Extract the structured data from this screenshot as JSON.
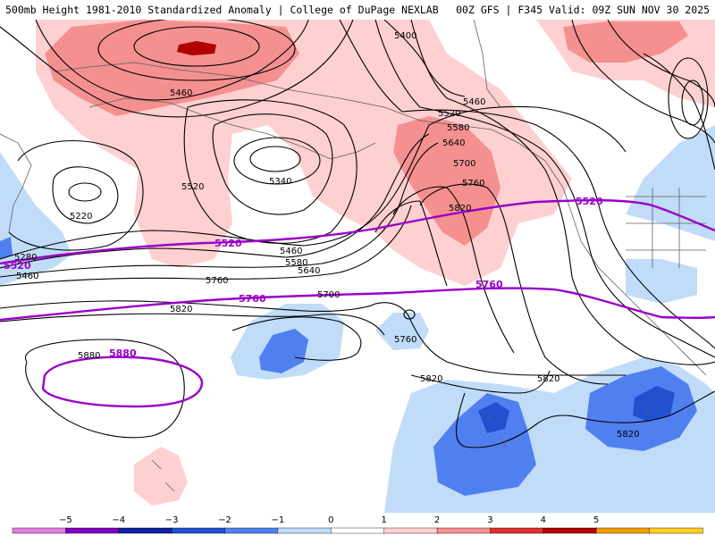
{
  "header": {
    "left_title": "500mb Height 1981-2010 Standardized Anomaly | College of DuPage NEXLAB",
    "right_title": "00Z GFS | F345 Valid: 09Z SUN NOV 30 2025"
  },
  "map": {
    "contour_labels": [
      {
        "id": "c5400",
        "text": "5400"
      },
      {
        "id": "c5460a",
        "text": "5460"
      },
      {
        "id": "c5460b",
        "text": "5460"
      },
      {
        "id": "c5520a",
        "text": "5520"
      },
      {
        "id": "c5580",
        "text": "5580"
      },
      {
        "id": "c5640",
        "text": "5640"
      },
      {
        "id": "c5700",
        "text": "5700"
      },
      {
        "id": "c5760",
        "text": "5760"
      },
      {
        "id": "c5820",
        "text": "5820"
      },
      {
        "id": "c5340",
        "text": "5340"
      },
      {
        "id": "c5520b",
        "text": "5520"
      },
      {
        "id": "c5220",
        "text": "5220"
      },
      {
        "id": "c5280",
        "text": "5280"
      },
      {
        "id": "c5460c",
        "text": "5460"
      },
      {
        "id": "c5460d",
        "text": "5460"
      },
      {
        "id": "c5580b",
        "text": "5580"
      },
      {
        "id": "c5640b",
        "text": "5640"
      },
      {
        "id": "c5700b",
        "text": "5700"
      },
      {
        "id": "c5760b",
        "text": "5760"
      },
      {
        "id": "c5820b",
        "text": "5820"
      },
      {
        "id": "c5880",
        "text": "5880"
      },
      {
        "id": "c5760c",
        "text": "5760"
      },
      {
        "id": "c5820c",
        "text": "5820"
      },
      {
        "id": "c5820d",
        "text": "5820"
      },
      {
        "id": "c5820e",
        "text": "5820"
      }
    ],
    "climo_labels": [
      {
        "id": "p5520a",
        "text": "5520"
      },
      {
        "id": "p5520b",
        "text": "5520"
      },
      {
        "id": "p5520c",
        "text": "5520"
      },
      {
        "id": "p5760a",
        "text": "5760"
      },
      {
        "id": "p5760b",
        "text": "5760"
      },
      {
        "id": "p5880",
        "text": "5880"
      }
    ]
  },
  "colorbar": {
    "ticks": [
      "−5",
      "−4",
      "−3",
      "−2",
      "−1",
      "0",
      "1",
      "2",
      "3",
      "4",
      "5"
    ],
    "colors": [
      "#e080e0",
      "#8000c0",
      "#1020a0",
      "#2050d0",
      "#5080f0",
      "#c0dcf8",
      "#ffffff",
      "#ffd0d0",
      "#f59090",
      "#e03030",
      "#b00000",
      "#f0a000",
      "#ffd020"
    ]
  }
}
